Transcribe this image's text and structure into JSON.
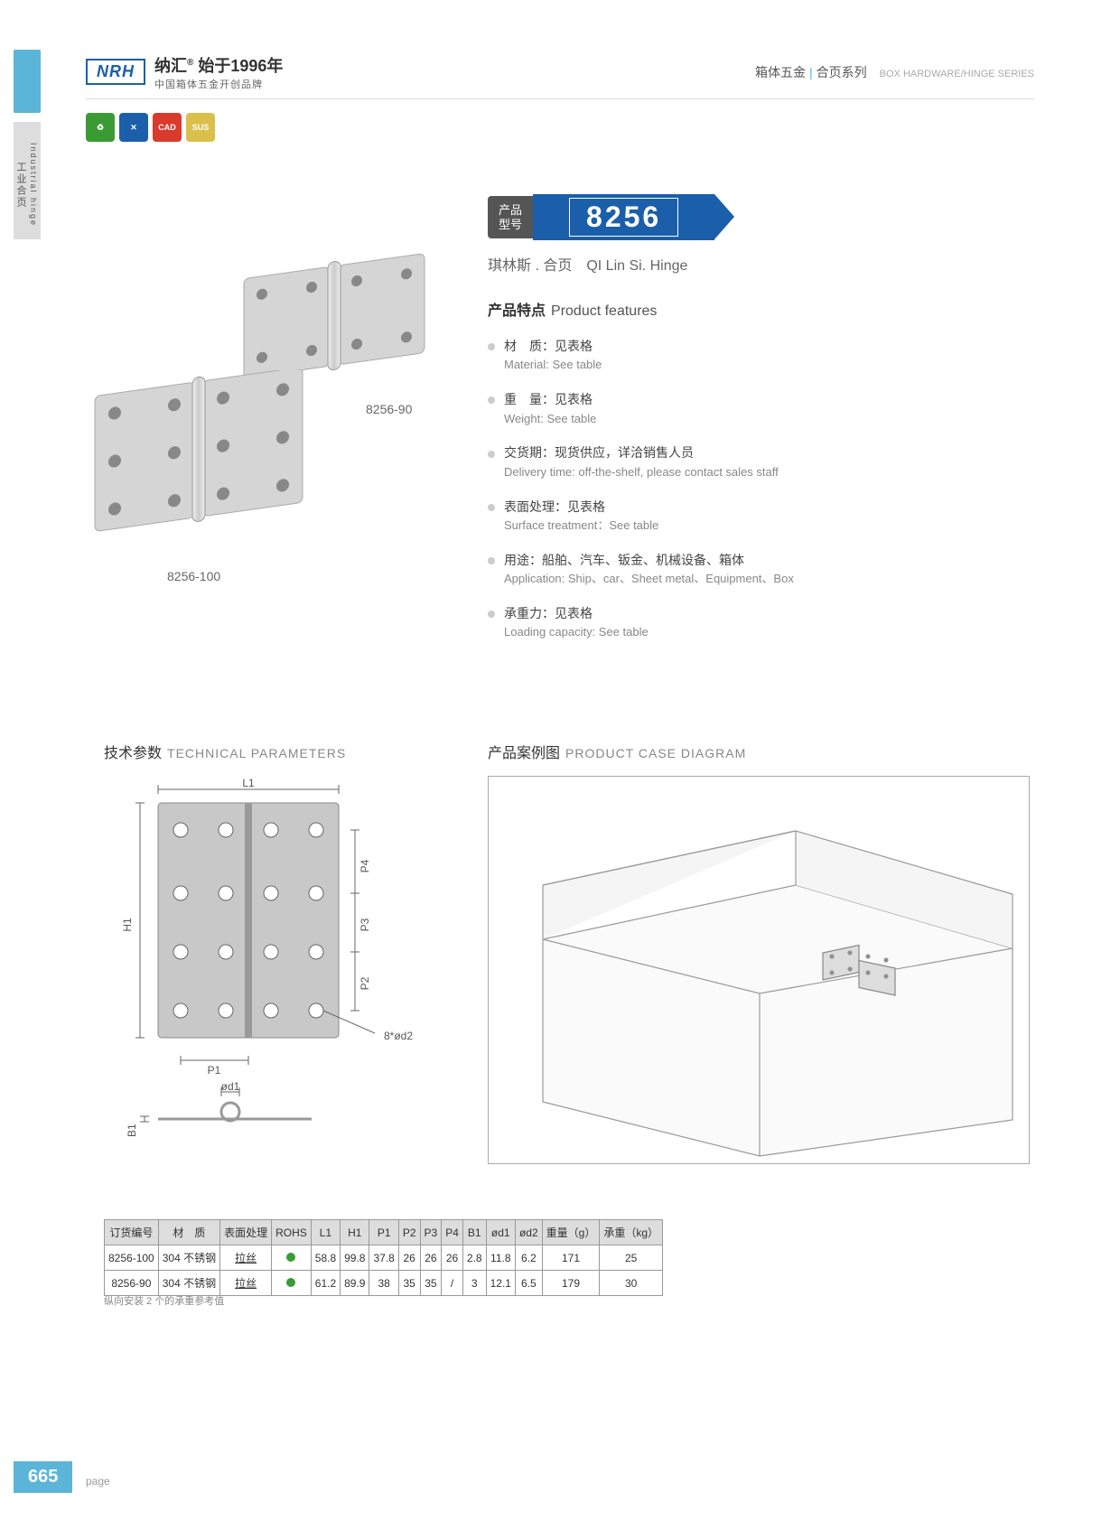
{
  "header": {
    "logo_text": "NRH",
    "logo_cn": "纳汇",
    "logo_year": "始于1996年",
    "logo_sub": "中国箱体五金开创品牌",
    "cat_cn": "箱体五金",
    "cat_sub": "合页系列",
    "cat_en": "BOX HARDWARE/HINGE SERIES"
  },
  "side": {
    "label_cn": "工业合页",
    "label_en": "Industrial hinge"
  },
  "icons": [
    {
      "bg": "#3a9b35",
      "txt": "♻"
    },
    {
      "bg": "#1b5faa",
      "txt": "✕"
    },
    {
      "bg": "#d93a2b",
      "txt": "CAD"
    },
    {
      "bg": "#d9c04a",
      "txt": "SUS"
    }
  ],
  "model": {
    "label": "产品\n型号",
    "number": "8256"
  },
  "product_name": "琪林斯 . 合页　QI Lin Si. Hinge",
  "features": {
    "title_cn": "产品特点",
    "title_en": "Product features",
    "items": [
      {
        "cn": "材　质：见表格",
        "en": "Material: See table"
      },
      {
        "cn": "重　量：见表格",
        "en": "Weight: See table"
      },
      {
        "cn": "交货期：现货供应，详洽销售人员",
        "en": "Delivery time: off-the-shelf, please contact sales staff"
      },
      {
        "cn": "表面处理：见表格",
        "en": "Surface treatment：See table"
      },
      {
        "cn": "用途：船舶、汽车、钣金、机械设备、箱体",
        "en": "Application: Ship、car、Sheet metal、Equipment、Box"
      },
      {
        "cn": "承重力：见表格",
        "en": "Loading capacity: See table"
      }
    ]
  },
  "images": {
    "label1": "8256-90",
    "label2": "8256-100"
  },
  "tech": {
    "title_cn": "技术参数",
    "title_en": "TECHNICAL PARAMETERS",
    "dims": {
      "L1": "L1",
      "H1": "H1",
      "P1": "P1",
      "P2": "P2",
      "P3": "P3",
      "P4": "P4",
      "B1": "B1",
      "od1": "ød1",
      "holes": "8*ød2"
    }
  },
  "case": {
    "title_cn": "产品案例图",
    "title_en": "PRODUCT CASE DIAGRAM"
  },
  "table": {
    "headers": [
      "订货编号",
      "材　质",
      "表面处理",
      "ROHS",
      "L1",
      "H1",
      "P1",
      "P2",
      "P3",
      "P4",
      "B1",
      "ød1",
      "ød2",
      "重量（g）",
      "承重（kg）"
    ],
    "rows": [
      [
        "8256-100",
        "304 不锈钢",
        "拉丝",
        "●",
        "58.8",
        "99.8",
        "37.8",
        "26",
        "26",
        "26",
        "2.8",
        "11.8",
        "6.2",
        "171",
        "25"
      ],
      [
        "8256-90",
        "304 不锈钢",
        "拉丝",
        "●",
        "61.2",
        "89.9",
        "38",
        "35",
        "35",
        "/",
        "3",
        "12.1",
        "6.5",
        "179",
        "30"
      ]
    ],
    "note": "纵向安装 2 个的承重参考值"
  },
  "page": {
    "num": "665",
    "label": "page"
  },
  "colors": {
    "primary": "#1b5faa",
    "accent": "#5bb5d8",
    "green": "#3a9b35"
  }
}
